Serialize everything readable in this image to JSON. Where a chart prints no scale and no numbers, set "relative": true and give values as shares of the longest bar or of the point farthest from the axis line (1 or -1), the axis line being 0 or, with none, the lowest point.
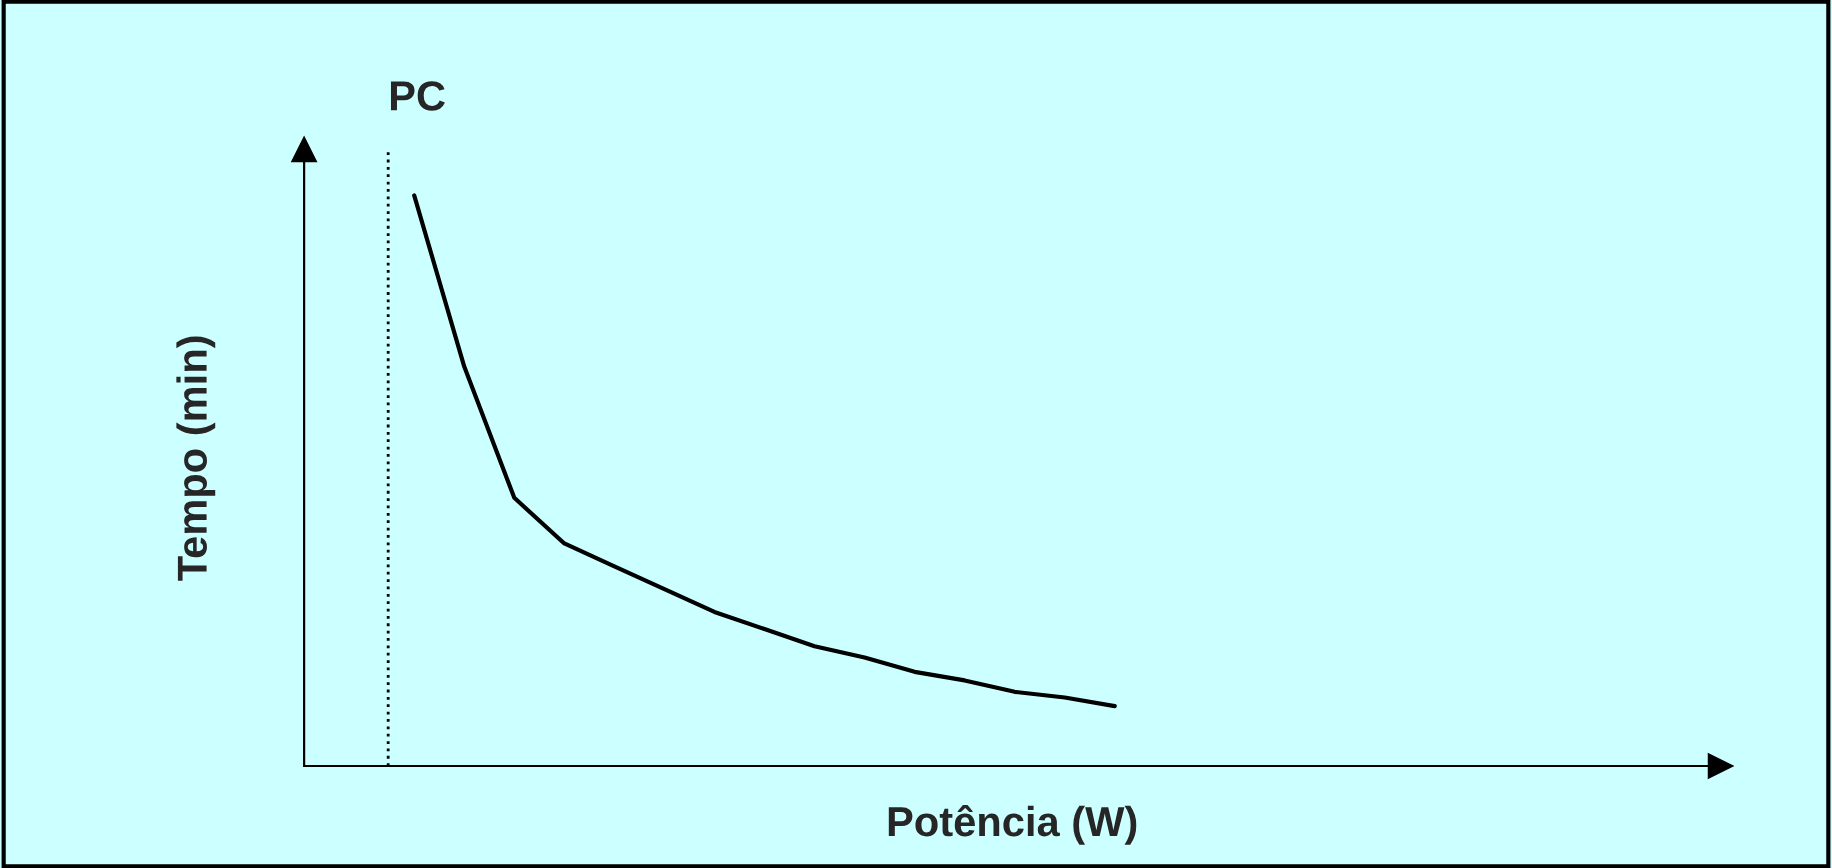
{
  "chart_data": {
    "type": "line",
    "relative": true,
    "xlabel": "Potência (W)",
    "ylabel": "Tempo (min)",
    "categories": [
      null,
      null,
      null,
      null,
      null,
      null,
      null,
      null,
      null,
      null,
      null,
      null,
      null,
      null,
      null
    ],
    "series": [
      {
        "color": "#000000",
        "values": [
          1,
          0.7,
          0.47,
          0.39,
          0.35,
          0.31,
          0.27,
          0.24,
          0.21,
          0.19,
          0.165,
          0.15,
          0.13,
          0.12,
          0.105
        ]
      }
    ],
    "annotations": [
      "PC"
    ],
    "marker": "none",
    "line_style": "solid"
  }
}
